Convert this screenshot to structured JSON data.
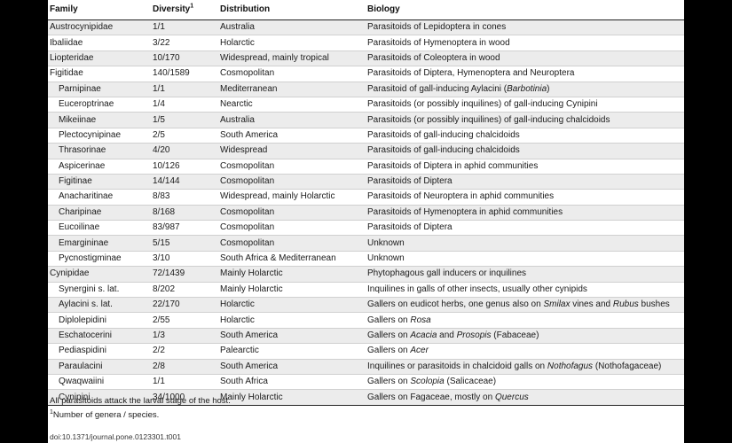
{
  "headers": {
    "family": "Family",
    "diversity": "Diversity",
    "diversity_sup": "1",
    "distribution": "Distribution",
    "biology": "Biology"
  },
  "rows": [
    {
      "family": "Austrocynipidae",
      "sub": false,
      "diversity": "1/1",
      "distribution": "Australia",
      "biology": [
        {
          "t": "Parasitoids of Lepidoptera in cones"
        }
      ]
    },
    {
      "family": "Ibaliidae",
      "sub": false,
      "diversity": "3/22",
      "distribution": "Holarctic",
      "biology": [
        {
          "t": "Parasitoids of Hymenoptera in wood"
        }
      ]
    },
    {
      "family": "Liopteridae",
      "sub": false,
      "diversity": "10/170",
      "distribution": "Widespread, mainly tropical",
      "biology": [
        {
          "t": "Parasitoids of Coleoptera in wood"
        }
      ]
    },
    {
      "family": "Figitidae",
      "sub": false,
      "diversity": "140/1589",
      "distribution": "Cosmopolitan",
      "biology": [
        {
          "t": "Parasitoids of Diptera, Hymenoptera and Neuroptera"
        }
      ]
    },
    {
      "family": "Parnipinae",
      "sub": true,
      "diversity": "1/1",
      "distribution": "Mediterranean",
      "biology": [
        {
          "t": "Parasitoid of gall-inducing Aylacini ("
        },
        {
          "t": "Barbotinia",
          "i": true
        },
        {
          "t": ")"
        }
      ]
    },
    {
      "family": "Euceroptrinae",
      "sub": true,
      "diversity": "1/4",
      "distribution": "Nearctic",
      "biology": [
        {
          "t": "Parasitoids (or possibly inquilines) of gall-inducing Cynipini"
        }
      ]
    },
    {
      "family": "Mikeiinae",
      "sub": true,
      "diversity": "1/5",
      "distribution": "Australia",
      "biology": [
        {
          "t": "Parasitoids (or possibly inquilines) of gall-inducing chalcidoids"
        }
      ]
    },
    {
      "family": "Plectocynipinae",
      "sub": true,
      "diversity": "2/5",
      "distribution": "South America",
      "biology": [
        {
          "t": "Parasitoids of gall-inducing chalcidoids"
        }
      ]
    },
    {
      "family": "Thrasorinae",
      "sub": true,
      "diversity": "4/20",
      "distribution": "Widespread",
      "biology": [
        {
          "t": "Parasitoids of gall-inducing chalcidoids"
        }
      ]
    },
    {
      "family": "Aspicerinae",
      "sub": true,
      "diversity": "10/126",
      "distribution": "Cosmopolitan",
      "biology": [
        {
          "t": "Parasitoids of Diptera in aphid communities"
        }
      ]
    },
    {
      "family": "Figitinae",
      "sub": true,
      "diversity": "14/144",
      "distribution": "Cosmopolitan",
      "biology": [
        {
          "t": "Parasitoids of Diptera"
        }
      ]
    },
    {
      "family": "Anacharitinae",
      "sub": true,
      "diversity": "8/83",
      "distribution": "Widespread, mainly Holarctic",
      "biology": [
        {
          "t": "Parasitoids of Neuroptera in aphid communities"
        }
      ]
    },
    {
      "family": "Charipinae",
      "sub": true,
      "diversity": "8/168",
      "distribution": "Cosmopolitan",
      "biology": [
        {
          "t": "Parasitoids of Hymenoptera in aphid communities"
        }
      ]
    },
    {
      "family": "Eucoilinae",
      "sub": true,
      "diversity": "83/987",
      "distribution": "Cosmopolitan",
      "biology": [
        {
          "t": "Parasitoids of Diptera"
        }
      ]
    },
    {
      "family": "Emargininae",
      "sub": true,
      "diversity": "5/15",
      "distribution": "Cosmopolitan",
      "biology": [
        {
          "t": "Unknown"
        }
      ]
    },
    {
      "family": "Pycnostigminae",
      "sub": true,
      "diversity": "3/10",
      "distribution": "South Africa & Mediterranean",
      "biology": [
        {
          "t": "Unknown"
        }
      ]
    },
    {
      "family": "Cynipidae",
      "sub": false,
      "diversity": "72/1439",
      "distribution": "Mainly Holarctic",
      "biology": [
        {
          "t": "Phytophagous gall inducers or inquilines"
        }
      ]
    },
    {
      "family": "Synergini s. lat.",
      "sub": true,
      "diversity": "8/202",
      "distribution": "Mainly Holarctic",
      "biology": [
        {
          "t": "Inquilines in galls of other insects, usually other cynipids"
        }
      ]
    },
    {
      "family": "Aylacini s. lat.",
      "sub": true,
      "diversity": "22/170",
      "distribution": "Holarctic",
      "biology": [
        {
          "t": "Gallers on eudicot herbs, one genus also on "
        },
        {
          "t": "Smilax",
          "i": true
        },
        {
          "t": " vines and "
        },
        {
          "t": "Rubus",
          "i": true
        },
        {
          "t": " bushes"
        }
      ]
    },
    {
      "family": "Diplolepidini",
      "sub": true,
      "diversity": "2/55",
      "distribution": "Holarctic",
      "biology": [
        {
          "t": "Gallers on "
        },
        {
          "t": "Rosa",
          "i": true
        }
      ]
    },
    {
      "family": "Eschatocerini",
      "sub": true,
      "diversity": "1/3",
      "distribution": "South America",
      "biology": [
        {
          "t": "Gallers on "
        },
        {
          "t": "Acacia",
          "i": true
        },
        {
          "t": " and "
        },
        {
          "t": "Prosopis",
          "i": true
        },
        {
          "t": " (Fabaceae)"
        }
      ]
    },
    {
      "family": "Pediaspidini",
      "sub": true,
      "diversity": "2/2",
      "distribution": "Palearctic",
      "biology": [
        {
          "t": "Gallers on "
        },
        {
          "t": "Acer",
          "i": true
        }
      ]
    },
    {
      "family": "Paraulacini",
      "sub": true,
      "diversity": "2/8",
      "distribution": "South America",
      "biology": [
        {
          "t": "Inquilines or parasitoids in chalcidoid galls on "
        },
        {
          "t": "Nothofagus",
          "i": true
        },
        {
          "t": " (Nothofagaceae)"
        }
      ]
    },
    {
      "family": "Qwaqwaiini",
      "sub": true,
      "diversity": "1/1",
      "distribution": "South Africa",
      "biology": [
        {
          "t": "Gallers on "
        },
        {
          "t": "Scolopia",
          "i": true
        },
        {
          "t": " (Salicaceae)"
        }
      ]
    },
    {
      "family": "Cynipini",
      "sub": true,
      "diversity": "34/1000",
      "distribution": "Mainly Holarctic",
      "biology": [
        {
          "t": "Gallers on Fagaceae, mostly on "
        },
        {
          "t": "Quercus",
          "i": true
        }
      ]
    }
  ],
  "footnotes": {
    "note1": "All parasitoids attack the larval stage of the host.",
    "note2_marker": "1",
    "note2": "Number of genera / species."
  },
  "doi": "doi:10.1371/journal.pone.0123301.t001"
}
